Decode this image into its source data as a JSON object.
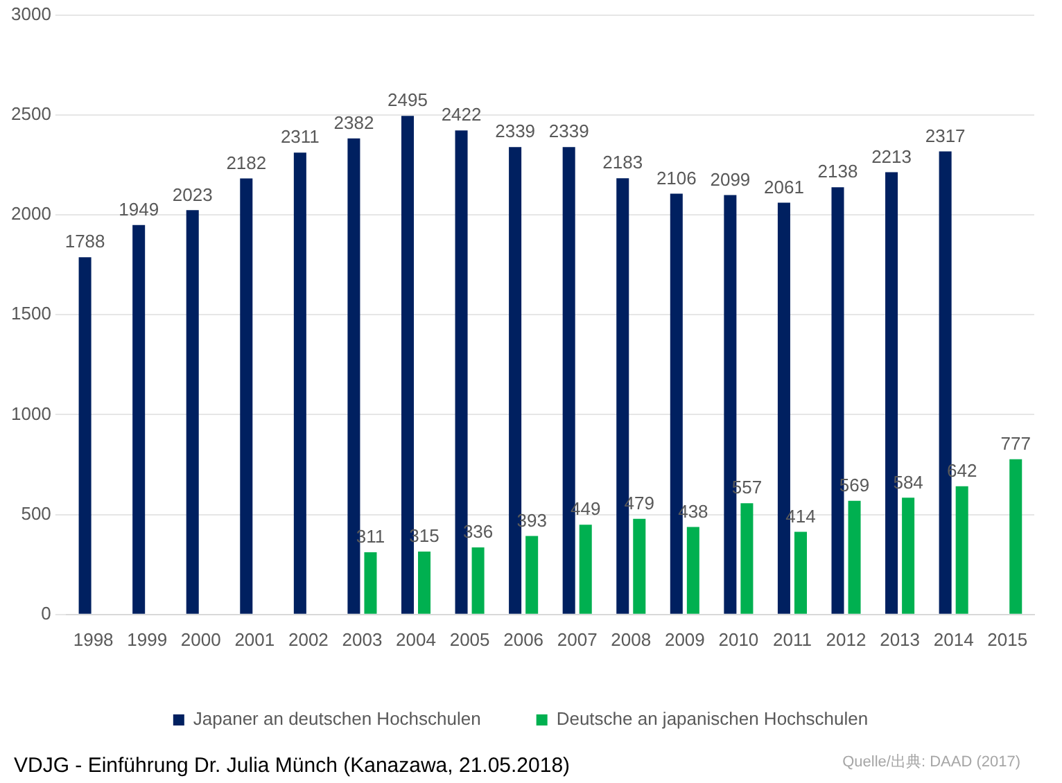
{
  "chart_data": {
    "type": "bar",
    "categories": [
      "1998",
      "1999",
      "2000",
      "2001",
      "2002",
      "2003",
      "2004",
      "2005",
      "2006",
      "2007",
      "2008",
      "2009",
      "2010",
      "2011",
      "2012",
      "2013",
      "2014",
      "2015"
    ],
    "series": [
      {
        "name": "Japaner an deutschen Hochschulen",
        "color": "#002060",
        "values": [
          1788,
          1949,
          2023,
          2182,
          2311,
          2382,
          2495,
          2422,
          2339,
          2339,
          2183,
          2106,
          2099,
          2061,
          2138,
          2213,
          2317,
          null
        ]
      },
      {
        "name": "Deutsche an japanischen Hochschulen",
        "color": "#00b050",
        "values": [
          null,
          null,
          null,
          null,
          null,
          311,
          315,
          336,
          393,
          449,
          479,
          438,
          557,
          414,
          569,
          584,
          642,
          777
        ]
      }
    ],
    "ylim": [
      0,
      3000
    ],
    "yticks": [
      0,
      500,
      1000,
      1500,
      2000,
      2500,
      3000
    ],
    "grid": "y",
    "legend": "bottom",
    "data_labels": true,
    "annotations": [
      "VDJG - Einführung Dr. Julia Münch (Kanazawa, 21.05.2018)",
      "Quelle/出典: DAAD (2017)"
    ]
  }
}
